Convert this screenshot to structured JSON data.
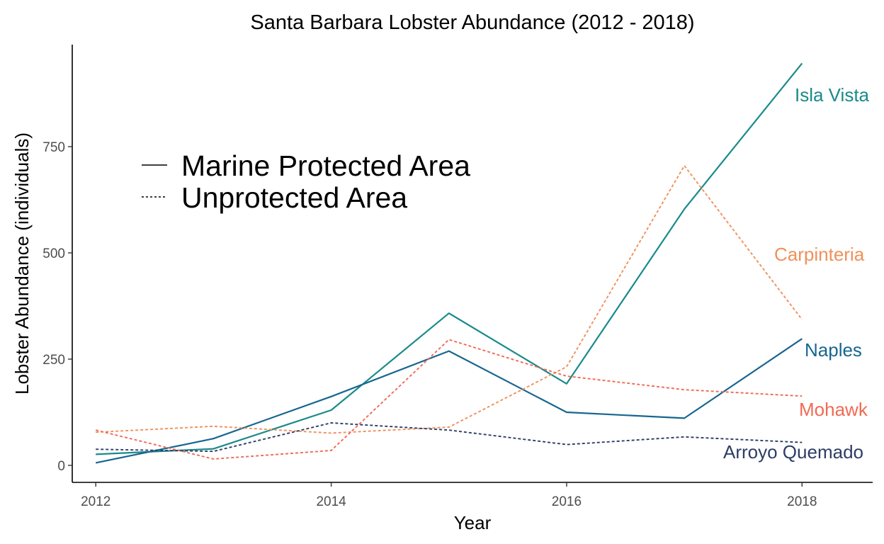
{
  "chart_data": {
    "type": "line",
    "title": "Santa Barbara Lobster Abundance (2012 - 2018)",
    "xlabel": "Year",
    "ylabel": "Lobster Abundance (individuals)",
    "xlim": [
      2011.8,
      2018.6
    ],
    "ylim": [
      -40,
      990
    ],
    "x_ticks": [
      2012,
      2014,
      2016,
      2018
    ],
    "y_ticks": [
      0,
      250,
      500,
      750
    ],
    "x_tick_labels": [
      "2012",
      "2014",
      "2016",
      "2018"
    ],
    "y_tick_labels": [
      "0",
      "250",
      "500",
      "750"
    ],
    "x": [
      2012,
      2013,
      2014,
      2015,
      2016,
      2017,
      2018
    ],
    "grid": false,
    "legend": {
      "position": "upper-left",
      "entries": [
        {
          "label": "Marine Protected Area",
          "dash": "solid"
        },
        {
          "label": "Unprotected Area",
          "dash": "dotted"
        }
      ]
    },
    "series": [
      {
        "name": "Isla Vista",
        "protected": true,
        "color": "#1a8a8a",
        "values": [
          26,
          39,
          130,
          358,
          192,
          603,
          946
        ]
      },
      {
        "name": "Naples",
        "protected": true,
        "color": "#17668f",
        "values": [
          6,
          63,
          162,
          269,
          125,
          111,
          298
        ]
      },
      {
        "name": "Carpinteria",
        "protected": false,
        "color": "#f0905a",
        "values": [
          78,
          92,
          76,
          90,
          232,
          705,
          343
        ]
      },
      {
        "name": "Mohawk",
        "protected": false,
        "color": "#f06a55",
        "values": [
          83,
          15,
          35,
          296,
          210,
          178,
          163
        ]
      },
      {
        "name": "Arroyo Quemado",
        "protected": false,
        "color": "#2d3d66",
        "values": [
          38,
          33,
          100,
          83,
          49,
          67,
          54
        ]
      }
    ]
  }
}
